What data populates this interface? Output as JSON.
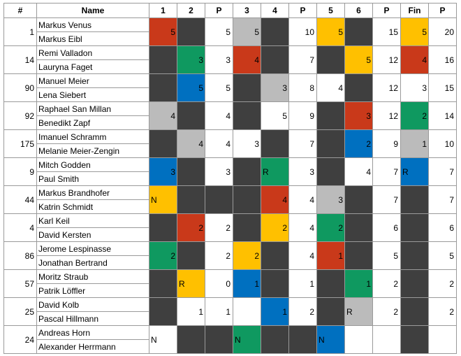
{
  "headers": [
    "#",
    "Name",
    "1",
    "2",
    "P",
    "3",
    "4",
    "P",
    "5",
    "6",
    "P",
    "Fin",
    "P"
  ],
  "entries": [
    {
      "num": "1",
      "drivers": [
        "Markus Venus",
        "Markus Eibl"
      ],
      "cells": [
        [
          "5",
          "r"
        ],
        [
          "",
          "d"
        ],
        [
          "5",
          "w"
        ],
        [
          "5",
          "g"
        ],
        [
          "",
          "d"
        ],
        [
          "10",
          "w"
        ],
        [
          "5",
          "y"
        ],
        [
          "",
          "d"
        ],
        [
          "15",
          "w"
        ],
        [
          "5",
          "y"
        ],
        [
          "20",
          "w"
        ]
      ]
    },
    {
      "num": "14",
      "drivers": [
        "Remi Valladon",
        "Lauryna Faget"
      ],
      "cells": [
        [
          "",
          "d"
        ],
        [
          "3",
          "G"
        ],
        [
          "3",
          "w"
        ],
        [
          "4",
          "r"
        ],
        [
          "",
          "d"
        ],
        [
          "7",
          "w"
        ],
        [
          "",
          "d"
        ],
        [
          "5",
          "y"
        ],
        [
          "12",
          "w"
        ],
        [
          "4",
          "r"
        ],
        [
          "16",
          "w"
        ]
      ]
    },
    {
      "num": "90",
      "drivers": [
        "Manuel Meier",
        "Lena Siebert"
      ],
      "cells": [
        [
          "",
          "d"
        ],
        [
          "5",
          "b"
        ],
        [
          "5",
          "w"
        ],
        [
          "",
          "d"
        ],
        [
          "3",
          "g"
        ],
        [
          "8",
          "w"
        ],
        [
          "4",
          "w"
        ],
        [
          "",
          "d"
        ],
        [
          "12",
          "w"
        ],
        [
          "3",
          "w"
        ],
        [
          "15",
          "w"
        ]
      ]
    },
    {
      "num": "92",
      "drivers": [
        "Raphael San Millan",
        "Benedikt Zapf"
      ],
      "cells": [
        [
          "4",
          "g"
        ],
        [
          "",
          "d"
        ],
        [
          "4",
          "w"
        ],
        [
          "",
          "d"
        ],
        [
          "5",
          "w"
        ],
        [
          "9",
          "w"
        ],
        [
          "",
          "d"
        ],
        [
          "3",
          "r"
        ],
        [
          "12",
          "w"
        ],
        [
          "2",
          "G"
        ],
        [
          "14",
          "w"
        ]
      ]
    },
    {
      "num": "175",
      "drivers": [
        "Imanuel Schramm",
        "Melanie Meier-Zengin"
      ],
      "cells": [
        [
          "",
          "d"
        ],
        [
          "4",
          "g"
        ],
        [
          "4",
          "w"
        ],
        [
          "3",
          "w"
        ],
        [
          "",
          "d"
        ],
        [
          "7",
          "w"
        ],
        [
          "",
          "d"
        ],
        [
          "2",
          "b"
        ],
        [
          "9",
          "w"
        ],
        [
          "1",
          "g"
        ],
        [
          "10",
          "w"
        ]
      ]
    },
    {
      "num": "9",
      "drivers": [
        "Mitch Godden",
        "Paul Smith"
      ],
      "cells": [
        [
          "3",
          "b"
        ],
        [
          "",
          "d"
        ],
        [
          "3",
          "w"
        ],
        [
          "",
          "d"
        ],
        [
          "R",
          "G"
        ],
        [
          "3",
          "w"
        ],
        [
          "",
          "d"
        ],
        [
          "4",
          "w"
        ],
        [
          "7",
          "w"
        ],
        [
          "R",
          "b"
        ],
        [
          "7",
          "w"
        ]
      ]
    },
    {
      "num": "44",
      "drivers": [
        "Markus Brandhofer",
        "Katrin Schmidt"
      ],
      "cells": [
        [
          "N",
          "y"
        ],
        [
          "",
          "d"
        ],
        [
          "",
          "d"
        ],
        [
          "",
          "d"
        ],
        [
          "4",
          "r"
        ],
        [
          "4",
          "w"
        ],
        [
          "3",
          "g"
        ],
        [
          "",
          "d"
        ],
        [
          "7",
          "w"
        ],
        [
          "",
          "d"
        ],
        [
          "7",
          "w"
        ]
      ]
    },
    {
      "num": "4",
      "drivers": [
        "Karl Keil",
        "David Kersten"
      ],
      "cells": [
        [
          "",
          "d"
        ],
        [
          "2",
          "r"
        ],
        [
          "2",
          "w"
        ],
        [
          "",
          "d"
        ],
        [
          "2",
          "y"
        ],
        [
          "4",
          "w"
        ],
        [
          "2",
          "G"
        ],
        [
          "",
          "d"
        ],
        [
          "6",
          "w"
        ],
        [
          "",
          "d"
        ],
        [
          "6",
          "w"
        ]
      ]
    },
    {
      "num": "86",
      "drivers": [
        "Jerome Lespinasse",
        "Jonathan Bertrand"
      ],
      "cells": [
        [
          "2",
          "G"
        ],
        [
          "",
          "d"
        ],
        [
          "2",
          "w"
        ],
        [
          "2",
          "y"
        ],
        [
          "",
          "d"
        ],
        [
          "4",
          "w"
        ],
        [
          "1",
          "r"
        ],
        [
          "",
          "d"
        ],
        [
          "5",
          "w"
        ],
        [
          "",
          "d"
        ],
        [
          "5",
          "w"
        ]
      ]
    },
    {
      "num": "57",
      "drivers": [
        "Moritz Straub",
        "Patrik Löffler"
      ],
      "cells": [
        [
          "",
          "d"
        ],
        [
          "R",
          "y"
        ],
        [
          "0",
          "w"
        ],
        [
          "1",
          "b"
        ],
        [
          "",
          "d"
        ],
        [
          "1",
          "w"
        ],
        [
          "",
          "d"
        ],
        [
          "1",
          "G"
        ],
        [
          "2",
          "w"
        ],
        [
          "",
          "d"
        ],
        [
          "2",
          "w"
        ]
      ]
    },
    {
      "num": "25",
      "drivers": [
        "David Kolb",
        "Pascal Hillmann"
      ],
      "cells": [
        [
          "",
          "d"
        ],
        [
          "1",
          "w"
        ],
        [
          "1",
          "w"
        ],
        [
          "",
          "w"
        ],
        [
          "1",
          "b"
        ],
        [
          "2",
          "w"
        ],
        [
          "",
          "d"
        ],
        [
          "R",
          "g"
        ],
        [
          "2",
          "w"
        ],
        [
          "",
          "d"
        ],
        [
          "2",
          "w"
        ]
      ]
    },
    {
      "num": "24",
      "drivers": [
        "Andreas Horn",
        "Alexander Herrmann"
      ],
      "cells": [
        [
          "N",
          "w"
        ],
        [
          "",
          "d"
        ],
        [
          "",
          "d"
        ],
        [
          "N",
          "G"
        ],
        [
          "",
          "d"
        ],
        [
          "",
          "d"
        ],
        [
          "N",
          "b"
        ],
        [
          "",
          "w"
        ],
        [
          "",
          "w"
        ],
        [
          "",
          "d"
        ],
        [
          "",
          "w"
        ]
      ]
    }
  ],
  "colors": {
    "dark": "#3f3f3f",
    "grey": "#bbbbbb",
    "red": "#c9391a",
    "yellow": "#ffc000",
    "green": "#0f9960",
    "blue": "#0070c0",
    "white": "#ffffff"
  }
}
